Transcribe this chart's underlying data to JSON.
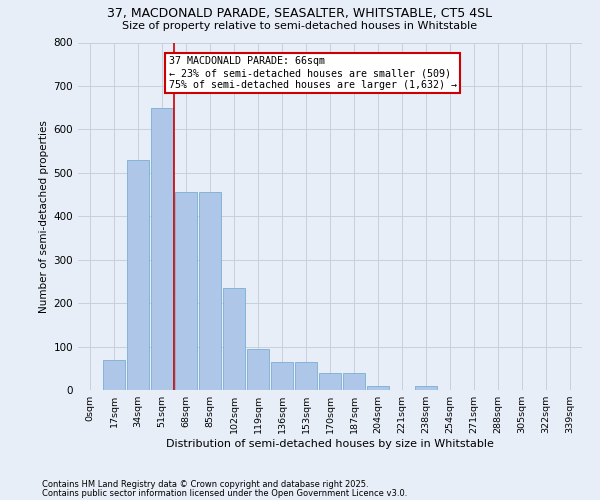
{
  "title_line1": "37, MACDONALD PARADE, SEASALTER, WHITSTABLE, CT5 4SL",
  "title_line2": "Size of property relative to semi-detached houses in Whitstable",
  "xlabel": "Distribution of semi-detached houses by size in Whitstable",
  "ylabel": "Number of semi-detached properties",
  "footnote1": "Contains HM Land Registry data © Crown copyright and database right 2025.",
  "footnote2": "Contains public sector information licensed under the Open Government Licence v3.0.",
  "categories": [
    "0sqm",
    "17sqm",
    "34sqm",
    "51sqm",
    "68sqm",
    "85sqm",
    "102sqm",
    "119sqm",
    "136sqm",
    "153sqm",
    "170sqm",
    "187sqm",
    "204sqm",
    "221sqm",
    "238sqm",
    "254sqm",
    "271sqm",
    "288sqm",
    "305sqm",
    "322sqm",
    "339sqm"
  ],
  "values": [
    0,
    70,
    530,
    650,
    455,
    455,
    235,
    95,
    65,
    65,
    40,
    40,
    10,
    0,
    10,
    0,
    0,
    0,
    0,
    0,
    0
  ],
  "bar_color": "#aec6e8",
  "bar_edge_color": "#7bafd4",
  "vline_color": "#cc0000",
  "vline_x_index": 3.5,
  "annotation_text": "37 MACDONALD PARADE: 66sqm\n← 23% of semi-detached houses are smaller (509)\n75% of semi-detached houses are larger (1,632) →",
  "annotation_box_color": "#ffffff",
  "annotation_box_edge_color": "#cc0000",
  "ylim": [
    0,
    800
  ],
  "yticks": [
    0,
    100,
    200,
    300,
    400,
    500,
    600,
    700,
    800
  ],
  "grid_color": "#c8d0dc",
  "background_color": "#e8eef8",
  "bar_width": 0.92
}
